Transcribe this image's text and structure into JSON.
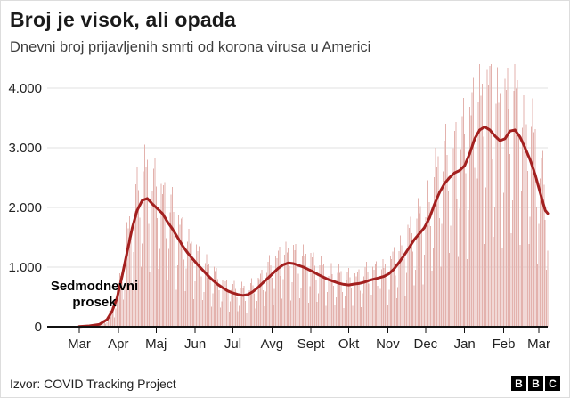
{
  "header": {
    "title": "Broj je visok, ali opada",
    "subtitle": "Dnevni broj prijavljenih smrti od korona virusa u Americi"
  },
  "chart_data": {
    "type": "bar",
    "title": "Broj je visok, ali opada",
    "subtitle": "Dnevni broj prijavljenih smrti od korona virusa u Americi",
    "xlabel": "",
    "ylabel": "",
    "x_tick_labels": [
      "Mar",
      "Apr",
      "Maj",
      "Jun",
      "Jul",
      "Avg",
      "Sept",
      "Okt",
      "Nov",
      "Dec",
      "Jan",
      "Feb",
      "Mar"
    ],
    "month_start_days": [
      0,
      31,
      61,
      92,
      122,
      153,
      184,
      214,
      245,
      275,
      306,
      337,
      365
    ],
    "total_days": 372,
    "y_ticks": [
      0,
      1000,
      2000,
      3000,
      4000
    ],
    "y_tick_labels": [
      "0",
      "1.000",
      "2.000",
      "3.000",
      "4.000"
    ],
    "ylim": [
      0,
      4400
    ],
    "grid": true,
    "annotation": {
      "lines": [
        "Sedmodnevni",
        "prosek"
      ]
    },
    "series": [
      {
        "name": "dnevne-prijavljene-smrti",
        "type": "bar",
        "color": "#e3b2ad",
        "derived_from": "sedmodnevni-prosek",
        "weekday_multipliers": [
          0.45,
          0.7,
          1.2,
          1.3,
          1.3,
          1.25,
          0.9
        ]
      },
      {
        "name": "sedmodnevni-prosek",
        "type": "line",
        "color": "#a3201f",
        "points": [
          [
            0,
            5
          ],
          [
            8,
            15
          ],
          [
            16,
            40
          ],
          [
            22,
            120
          ],
          [
            26,
            260
          ],
          [
            30,
            480
          ],
          [
            34,
            850
          ],
          [
            38,
            1250
          ],
          [
            42,
            1650
          ],
          [
            46,
            1950
          ],
          [
            50,
            2120
          ],
          [
            54,
            2150
          ],
          [
            58,
            2060
          ],
          [
            62,
            1980
          ],
          [
            66,
            1900
          ],
          [
            70,
            1760
          ],
          [
            74,
            1640
          ],
          [
            78,
            1500
          ],
          [
            82,
            1360
          ],
          [
            86,
            1240
          ],
          [
            90,
            1140
          ],
          [
            94,
            1040
          ],
          [
            98,
            950
          ],
          [
            102,
            860
          ],
          [
            106,
            780
          ],
          [
            110,
            710
          ],
          [
            114,
            650
          ],
          [
            118,
            600
          ],
          [
            122,
            565
          ],
          [
            126,
            540
          ],
          [
            130,
            525
          ],
          [
            134,
            540
          ],
          [
            138,
            590
          ],
          [
            142,
            660
          ],
          [
            146,
            740
          ],
          [
            150,
            820
          ],
          [
            154,
            900
          ],
          [
            158,
            980
          ],
          [
            162,
            1040
          ],
          [
            166,
            1070
          ],
          [
            170,
            1060
          ],
          [
            174,
            1030
          ],
          [
            178,
            1000
          ],
          [
            182,
            960
          ],
          [
            186,
            920
          ],
          [
            190,
            870
          ],
          [
            194,
            830
          ],
          [
            198,
            790
          ],
          [
            202,
            760
          ],
          [
            206,
            730
          ],
          [
            210,
            710
          ],
          [
            214,
            700
          ],
          [
            218,
            715
          ],
          [
            222,
            725
          ],
          [
            226,
            745
          ],
          [
            230,
            775
          ],
          [
            234,
            800
          ],
          [
            238,
            820
          ],
          [
            242,
            845
          ],
          [
            246,
            890
          ],
          [
            250,
            970
          ],
          [
            254,
            1080
          ],
          [
            258,
            1200
          ],
          [
            262,
            1330
          ],
          [
            266,
            1460
          ],
          [
            270,
            1560
          ],
          [
            274,
            1660
          ],
          [
            278,
            1820
          ],
          [
            282,
            2050
          ],
          [
            286,
            2250
          ],
          [
            290,
            2400
          ],
          [
            294,
            2500
          ],
          [
            298,
            2580
          ],
          [
            302,
            2620
          ],
          [
            306,
            2700
          ],
          [
            310,
            2900
          ],
          [
            314,
            3150
          ],
          [
            318,
            3300
          ],
          [
            322,
            3350
          ],
          [
            326,
            3300
          ],
          [
            330,
            3200
          ],
          [
            334,
            3120
          ],
          [
            338,
            3150
          ],
          [
            342,
            3280
          ],
          [
            346,
            3300
          ],
          [
            350,
            3180
          ],
          [
            354,
            3000
          ],
          [
            358,
            2800
          ],
          [
            362,
            2550
          ],
          [
            366,
            2250
          ],
          [
            370,
            1950
          ],
          [
            372,
            1900
          ]
        ]
      }
    ],
    "colors": {
      "grid": "#e2e2e2",
      "axis": "#111111",
      "tick_text": "#222222",
      "annotation_text": "#000000"
    }
  },
  "footer": {
    "source": "Izvor: COVID Tracking Project",
    "logo_letters": [
      "B",
      "B",
      "C"
    ]
  }
}
